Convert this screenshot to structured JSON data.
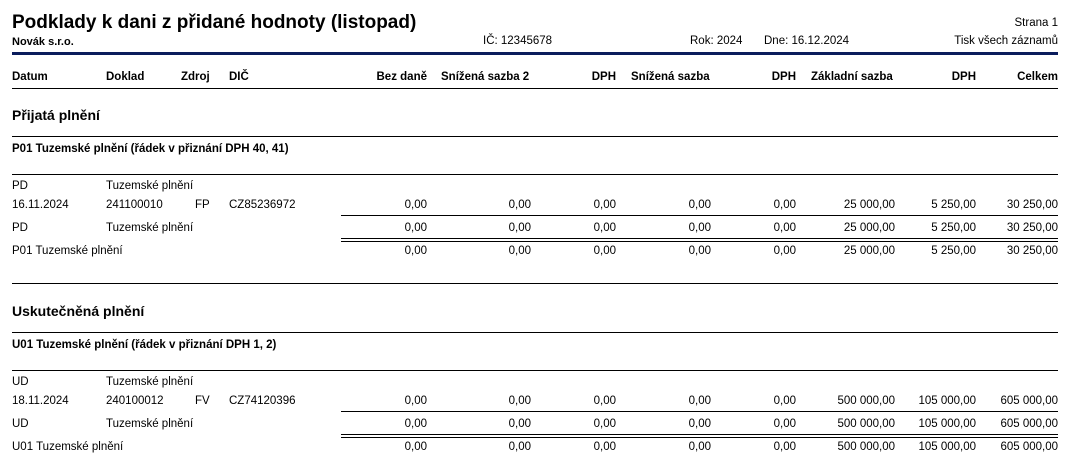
{
  "header": {
    "title": "Podklady k dani z přidané hodnoty (listopad)",
    "page": "Strana 1",
    "company": "Novák s.r.o.",
    "ico": "IČ: 12345678",
    "year": "Rok: 2024",
    "date": "Dne: 16.12.2024",
    "mode": "Tisk všech záznamů"
  },
  "columns": {
    "datum": "Datum",
    "doklad": "Doklad",
    "zdroj": "Zdroj",
    "dic": "DIČ",
    "bez_dane": "Bez daně",
    "snizena2": "Snížená sazba 2",
    "dph1": "DPH",
    "snizena": "Snížená sazba",
    "dph2": "DPH",
    "zakladni": "Základní sazba",
    "dph3": "DPH",
    "celkem": "Celkem"
  },
  "prijata": {
    "title": "Přijatá plnění",
    "group": "P01 Tuzemské plnění (řádek v přiznání DPH 40, 41)",
    "type_code": "PD",
    "type_label": "Tuzemské plnění",
    "row": {
      "datum": "16.11.2024",
      "doklad": "241100010",
      "zdroj": "FP",
      "dic": "CZ85236972",
      "values": [
        "0,00",
        "0,00",
        "0,00",
        "0,00",
        "0,00",
        "25 000,00",
        "5 250,00",
        "30 250,00"
      ]
    },
    "subtotal": {
      "code": "PD",
      "label": "Tuzemské plnění",
      "values": [
        "0,00",
        "0,00",
        "0,00",
        "0,00",
        "0,00",
        "25 000,00",
        "5 250,00",
        "30 250,00"
      ]
    },
    "total": {
      "label": "P01 Tuzemské plnění",
      "values": [
        "0,00",
        "0,00",
        "0,00",
        "0,00",
        "0,00",
        "25 000,00",
        "5 250,00",
        "30 250,00"
      ]
    }
  },
  "uskutecnena": {
    "title": "Uskutečněná plnění",
    "group": "U01 Tuzemské plnění (řádek v přiznání DPH 1, 2)",
    "type_code": "UD",
    "type_label": "Tuzemské plnění",
    "row": {
      "datum": "18.11.2024",
      "doklad": "240100012",
      "zdroj": "FV",
      "dic": "CZ74120396",
      "values": [
        "0,00",
        "0,00",
        "0,00",
        "0,00",
        "0,00",
        "500 000,00",
        "105 000,00",
        "605 000,00"
      ]
    },
    "subtotal": {
      "code": "UD",
      "label": "Tuzemské plnění",
      "values": [
        "0,00",
        "0,00",
        "0,00",
        "0,00",
        "0,00",
        "500 000,00",
        "105 000,00",
        "605 000,00"
      ]
    },
    "total": {
      "label": "U01 Tuzemské plnění",
      "values": [
        "0,00",
        "0,00",
        "0,00",
        "0,00",
        "0,00",
        "500 000,00",
        "105 000,00",
        "605 000,00"
      ]
    }
  }
}
